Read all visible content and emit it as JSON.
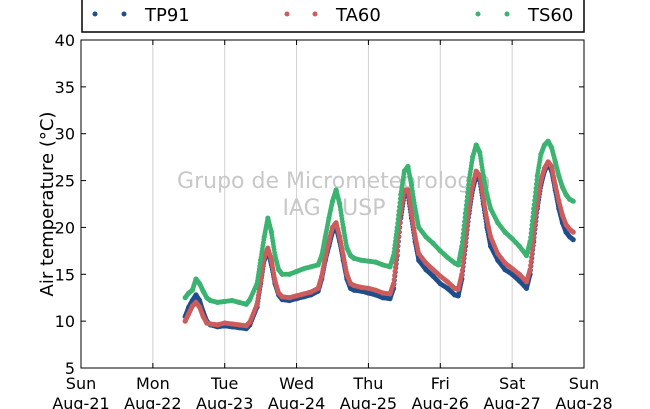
{
  "chart_data": {
    "type": "scatter",
    "ylabel": "Air temperature (°C)",
    "xlabel": "",
    "ylim": [
      5,
      40
    ],
    "yticks": [
      5,
      10,
      15,
      20,
      25,
      30,
      35,
      40
    ],
    "xlim": [
      0,
      7
    ],
    "xticks": [
      {
        "day": "Sun",
        "date": "Aug-21"
      },
      {
        "day": "Mon",
        "date": "Aug-22"
      },
      {
        "day": "Tue",
        "date": "Aug-23"
      },
      {
        "day": "Wed",
        "date": "Aug-24"
      },
      {
        "day": "Thu",
        "date": "Aug-25"
      },
      {
        "day": "Fri",
        "date": "Aug-26"
      },
      {
        "day": "Sat",
        "date": "Aug-27"
      },
      {
        "day": "Sun",
        "date": "Aug-28"
      }
    ],
    "grid": "vertical",
    "legend_position": "top",
    "watermark": [
      "Grupo de Micrometeorologia",
      "IAG / USP"
    ],
    "series": [
      {
        "name": "TP91",
        "color": "#1f4e8c",
        "points": [
          [
            1.45,
            10.5
          ],
          [
            1.5,
            11.5
          ],
          [
            1.55,
            12.2
          ],
          [
            1.6,
            12.8
          ],
          [
            1.65,
            12.2
          ],
          [
            1.7,
            11.0
          ],
          [
            1.75,
            10.0
          ],
          [
            1.8,
            9.6
          ],
          [
            1.9,
            9.4
          ],
          [
            2.0,
            9.5
          ],
          [
            2.1,
            9.4
          ],
          [
            2.2,
            9.3
          ],
          [
            2.3,
            9.2
          ],
          [
            2.35,
            9.6
          ],
          [
            2.45,
            11.5
          ],
          [
            2.5,
            14.0
          ],
          [
            2.55,
            16.5
          ],
          [
            2.6,
            17.5
          ],
          [
            2.65,
            16.0
          ],
          [
            2.7,
            14.0
          ],
          [
            2.75,
            12.8
          ],
          [
            2.8,
            12.3
          ],
          [
            2.9,
            12.2
          ],
          [
            3.0,
            12.4
          ],
          [
            3.1,
            12.6
          ],
          [
            3.2,
            12.8
          ],
          [
            3.3,
            13.2
          ],
          [
            3.35,
            14.5
          ],
          [
            3.4,
            16.5
          ],
          [
            3.45,
            18.0
          ],
          [
            3.5,
            19.5
          ],
          [
            3.55,
            20.0
          ],
          [
            3.6,
            18.5
          ],
          [
            3.65,
            16.5
          ],
          [
            3.7,
            14.5
          ],
          [
            3.75,
            13.5
          ],
          [
            3.8,
            13.3
          ],
          [
            3.9,
            13.2
          ],
          [
            4.0,
            13.0
          ],
          [
            4.1,
            12.8
          ],
          [
            4.2,
            12.5
          ],
          [
            4.3,
            12.4
          ],
          [
            4.35,
            13.5
          ],
          [
            4.4,
            17.0
          ],
          [
            4.45,
            21.0
          ],
          [
            4.5,
            23.5
          ],
          [
            4.55,
            23.5
          ],
          [
            4.6,
            21.0
          ],
          [
            4.65,
            18.5
          ],
          [
            4.7,
            16.5
          ],
          [
            4.8,
            15.5
          ],
          [
            4.9,
            14.8
          ],
          [
            5.0,
            14.0
          ],
          [
            5.1,
            13.5
          ],
          [
            5.2,
            12.8
          ],
          [
            5.25,
            12.7
          ],
          [
            5.3,
            14.5
          ],
          [
            5.35,
            18.0
          ],
          [
            5.4,
            21.5
          ],
          [
            5.45,
            24.0
          ],
          [
            5.5,
            25.5
          ],
          [
            5.55,
            25.0
          ],
          [
            5.6,
            22.5
          ],
          [
            5.65,
            20.0
          ],
          [
            5.7,
            18.0
          ],
          [
            5.8,
            16.5
          ],
          [
            5.9,
            15.5
          ],
          [
            6.0,
            15.0
          ],
          [
            6.1,
            14.3
          ],
          [
            6.2,
            13.5
          ],
          [
            6.25,
            15.0
          ],
          [
            6.3,
            18.5
          ],
          [
            6.35,
            22.0
          ],
          [
            6.4,
            24.5
          ],
          [
            6.45,
            26.0
          ],
          [
            6.5,
            26.8
          ],
          [
            6.55,
            26.0
          ],
          [
            6.6,
            24.0
          ],
          [
            6.65,
            22.0
          ],
          [
            6.7,
            20.5
          ],
          [
            6.75,
            19.5
          ],
          [
            6.8,
            19.0
          ],
          [
            6.85,
            18.7
          ]
        ]
      },
      {
        "name": "TA60",
        "color": "#cd5c5c",
        "points": [
          [
            1.45,
            10.0
          ],
          [
            1.5,
            10.8
          ],
          [
            1.55,
            11.6
          ],
          [
            1.6,
            12.0
          ],
          [
            1.65,
            11.5
          ],
          [
            1.7,
            10.5
          ],
          [
            1.75,
            9.8
          ],
          [
            1.8,
            9.7
          ],
          [
            1.9,
            9.6
          ],
          [
            2.0,
            9.8
          ],
          [
            2.1,
            9.7
          ],
          [
            2.2,
            9.6
          ],
          [
            2.3,
            9.5
          ],
          [
            2.35,
            9.9
          ],
          [
            2.45,
            11.8
          ],
          [
            2.5,
            14.3
          ],
          [
            2.55,
            16.8
          ],
          [
            2.6,
            17.8
          ],
          [
            2.65,
            16.5
          ],
          [
            2.7,
            14.3
          ],
          [
            2.75,
            13.0
          ],
          [
            2.8,
            12.6
          ],
          [
            2.9,
            12.5
          ],
          [
            3.0,
            12.7
          ],
          [
            3.1,
            12.9
          ],
          [
            3.2,
            13.1
          ],
          [
            3.3,
            13.5
          ],
          [
            3.35,
            14.8
          ],
          [
            3.4,
            16.8
          ],
          [
            3.45,
            18.5
          ],
          [
            3.5,
            20.0
          ],
          [
            3.55,
            20.5
          ],
          [
            3.6,
            19.0
          ],
          [
            3.65,
            17.0
          ],
          [
            3.7,
            15.0
          ],
          [
            3.75,
            14.0
          ],
          [
            3.8,
            13.8
          ],
          [
            3.9,
            13.6
          ],
          [
            4.0,
            13.5
          ],
          [
            4.1,
            13.3
          ],
          [
            4.2,
            13.0
          ],
          [
            4.3,
            12.9
          ],
          [
            4.35,
            14.0
          ],
          [
            4.4,
            17.5
          ],
          [
            4.45,
            21.5
          ],
          [
            4.5,
            24.0
          ],
          [
            4.55,
            24.0
          ],
          [
            4.6,
            21.5
          ],
          [
            4.65,
            19.0
          ],
          [
            4.7,
            17.2
          ],
          [
            4.8,
            16.2
          ],
          [
            4.9,
            15.5
          ],
          [
            5.0,
            14.8
          ],
          [
            5.1,
            14.2
          ],
          [
            5.2,
            13.5
          ],
          [
            5.25,
            13.4
          ],
          [
            5.3,
            15.0
          ],
          [
            5.35,
            18.5
          ],
          [
            5.4,
            22.0
          ],
          [
            5.45,
            24.5
          ],
          [
            5.5,
            26.0
          ],
          [
            5.55,
            25.5
          ],
          [
            5.6,
            23.0
          ],
          [
            5.65,
            20.8
          ],
          [
            5.7,
            19.0
          ],
          [
            5.8,
            17.2
          ],
          [
            5.9,
            16.2
          ],
          [
            6.0,
            15.6
          ],
          [
            6.1,
            15.0
          ],
          [
            6.2,
            14.2
          ],
          [
            6.25,
            15.5
          ],
          [
            6.3,
            19.0
          ],
          [
            6.35,
            22.5
          ],
          [
            6.4,
            25.0
          ],
          [
            6.45,
            26.3
          ],
          [
            6.5,
            27.0
          ],
          [
            6.55,
            26.5
          ],
          [
            6.6,
            24.5
          ],
          [
            6.65,
            22.8
          ],
          [
            6.7,
            21.3
          ],
          [
            6.75,
            20.3
          ],
          [
            6.8,
            19.8
          ],
          [
            6.85,
            19.5
          ]
        ]
      },
      {
        "name": "TS60",
        "color": "#3cb371",
        "points": [
          [
            1.45,
            12.5
          ],
          [
            1.5,
            13.0
          ],
          [
            1.55,
            13.3
          ],
          [
            1.6,
            14.5
          ],
          [
            1.65,
            14.0
          ],
          [
            1.7,
            13.2
          ],
          [
            1.75,
            12.5
          ],
          [
            1.8,
            12.2
          ],
          [
            1.9,
            12.0
          ],
          [
            2.0,
            12.1
          ],
          [
            2.1,
            12.2
          ],
          [
            2.2,
            12.0
          ],
          [
            2.3,
            11.8
          ],
          [
            2.35,
            12.3
          ],
          [
            2.45,
            14.0
          ],
          [
            2.5,
            16.5
          ],
          [
            2.55,
            19.0
          ],
          [
            2.6,
            21.0
          ],
          [
            2.65,
            19.5
          ],
          [
            2.7,
            17.0
          ],
          [
            2.75,
            15.5
          ],
          [
            2.8,
            15.0
          ],
          [
            2.9,
            15.0
          ],
          [
            3.0,
            15.3
          ],
          [
            3.1,
            15.6
          ],
          [
            3.2,
            15.8
          ],
          [
            3.3,
            16.0
          ],
          [
            3.35,
            17.0
          ],
          [
            3.4,
            19.0
          ],
          [
            3.45,
            21.0
          ],
          [
            3.5,
            22.8
          ],
          [
            3.55,
            24.0
          ],
          [
            3.6,
            22.5
          ],
          [
            3.65,
            20.0
          ],
          [
            3.7,
            17.8
          ],
          [
            3.75,
            17.0
          ],
          [
            3.8,
            16.7
          ],
          [
            3.9,
            16.5
          ],
          [
            4.0,
            16.4
          ],
          [
            4.1,
            16.3
          ],
          [
            4.2,
            16.0
          ],
          [
            4.3,
            15.8
          ],
          [
            4.35,
            17.0
          ],
          [
            4.4,
            20.0
          ],
          [
            4.45,
            23.5
          ],
          [
            4.5,
            26.0
          ],
          [
            4.55,
            26.5
          ],
          [
            4.6,
            24.5
          ],
          [
            4.65,
            22.0
          ],
          [
            4.7,
            20.0
          ],
          [
            4.8,
            19.0
          ],
          [
            4.9,
            18.3
          ],
          [
            5.0,
            17.5
          ],
          [
            5.1,
            16.8
          ],
          [
            5.2,
            16.2
          ],
          [
            5.25,
            16.0
          ],
          [
            5.3,
            18.0
          ],
          [
            5.35,
            21.5
          ],
          [
            5.4,
            25.0
          ],
          [
            5.45,
            27.5
          ],
          [
            5.5,
            28.8
          ],
          [
            5.55,
            28.0
          ],
          [
            5.6,
            25.5
          ],
          [
            5.65,
            23.5
          ],
          [
            5.7,
            22.0
          ],
          [
            5.8,
            20.5
          ],
          [
            5.9,
            19.5
          ],
          [
            6.0,
            18.8
          ],
          [
            6.1,
            18.0
          ],
          [
            6.2,
            17.0
          ],
          [
            6.25,
            18.5
          ],
          [
            6.3,
            22.0
          ],
          [
            6.35,
            25.5
          ],
          [
            6.4,
            27.8
          ],
          [
            6.45,
            28.8
          ],
          [
            6.5,
            29.2
          ],
          [
            6.55,
            28.5
          ],
          [
            6.6,
            27.0
          ],
          [
            6.65,
            25.5
          ],
          [
            6.7,
            24.3
          ],
          [
            6.75,
            23.5
          ],
          [
            6.8,
            23.0
          ],
          [
            6.85,
            22.8
          ]
        ]
      }
    ]
  }
}
